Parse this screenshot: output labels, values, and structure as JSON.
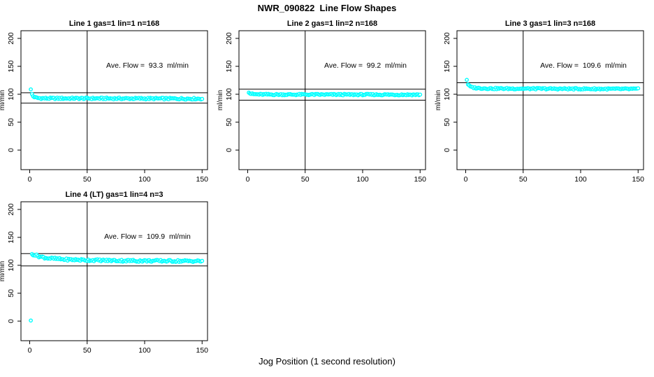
{
  "page": {
    "title": "NWR_090822  Line Flow Shapes",
    "xlabel": "Jog Position (1 second resolution)"
  },
  "colors": {
    "point_stroke": "#00FFFF",
    "point_fill": "#FFFFFF",
    "axis": "#000000",
    "background": "#FFFFFF"
  },
  "chart_data": [
    {
      "type": "scatter",
      "title": "Line 1 gas=1 lin=1 n=168",
      "annotation": "Ave. Flow =  93.3  ml/min",
      "ave_flow": 93.3,
      "ylabel": "ml/min",
      "xlim": [
        0,
        150
      ],
      "ylim": [
        0,
        200
      ],
      "xticks": [
        0,
        50,
        100,
        150
      ],
      "yticks": [
        0,
        50,
        100,
        150,
        200
      ],
      "ref_vline_x": 50,
      "ref_hlines": [
        102.6,
        84.0
      ],
      "grid": {
        "row": 0,
        "col": 0
      },
      "noise": 1.5,
      "n_points": 150,
      "series_knots": [
        [
          1,
          108
        ],
        [
          2,
          100
        ],
        [
          3,
          96.5
        ],
        [
          5,
          94
        ],
        [
          8,
          93
        ],
        [
          15,
          92.6
        ],
        [
          50,
          92.6
        ],
        [
          100,
          92.3
        ],
        [
          150,
          92
        ]
      ]
    },
    {
      "type": "scatter",
      "title": "Line 2 gas=1 lin=2 n=168",
      "annotation": "Ave. Flow =  99.2  ml/min",
      "ave_flow": 99.2,
      "ylabel": "ml/min",
      "xlim": [
        0,
        150
      ],
      "ylim": [
        0,
        200
      ],
      "xticks": [
        0,
        50,
        100,
        150
      ],
      "yticks": [
        0,
        50,
        100,
        150,
        200
      ],
      "ref_vline_x": 50,
      "ref_hlines": [
        109.1,
        89.3
      ],
      "grid": {
        "row": 0,
        "col": 1
      },
      "noise": 1.3,
      "n_points": 150,
      "series_knots": [
        [
          1,
          104
        ],
        [
          2,
          101.5
        ],
        [
          4,
          100.3
        ],
        [
          8,
          99.8
        ],
        [
          20,
          99.5
        ],
        [
          150,
          99.2
        ]
      ]
    },
    {
      "type": "scatter",
      "title": "Line 3 gas=1 lin=3 n=168",
      "annotation": "Ave. Flow =  109.6  ml/min",
      "ave_flow": 109.6,
      "ylabel": "ml/min",
      "xlim": [
        0,
        150
      ],
      "ylim": [
        0,
        200
      ],
      "xticks": [
        0,
        50,
        100,
        150
      ],
      "yticks": [
        0,
        50,
        100,
        150,
        200
      ],
      "ref_vline_x": 50,
      "ref_hlines": [
        120.6,
        98.6
      ],
      "grid": {
        "row": 0,
        "col": 2
      },
      "noise": 1.3,
      "n_points": 150,
      "series_knots": [
        [
          1,
          126
        ],
        [
          2,
          118
        ],
        [
          3,
          115
        ],
        [
          5,
          112.5
        ],
        [
          10,
          111
        ],
        [
          25,
          110.2
        ],
        [
          80,
          109.8
        ],
        [
          150,
          109.4
        ]
      ]
    },
    {
      "type": "scatter",
      "title": "Line 4 (LT) gas=1 lin=4 n=3",
      "annotation": "Ave. Flow =  109.9  ml/min",
      "ave_flow": 109.9,
      "ylabel": "ml/min",
      "xlim": [
        0,
        150
      ],
      "ylim": [
        0,
        200
      ],
      "xticks": [
        0,
        50,
        100,
        150
      ],
      "yticks": [
        0,
        50,
        100,
        150,
        200
      ],
      "ref_vline_x": 50,
      "ref_hlines": [
        120.9,
        98.9
      ],
      "grid": {
        "row": 1,
        "col": 0
      },
      "noise": 1.8,
      "n_points": 150,
      "series_knots": [
        [
          1,
          0
        ],
        [
          2,
          120
        ],
        [
          4,
          119
        ],
        [
          8,
          116
        ],
        [
          15,
          113
        ],
        [
          30,
          110.5
        ],
        [
          50,
          109.3
        ],
        [
          80,
          108.3
        ],
        [
          120,
          107.8
        ],
        [
          150,
          107.5
        ]
      ]
    }
  ]
}
